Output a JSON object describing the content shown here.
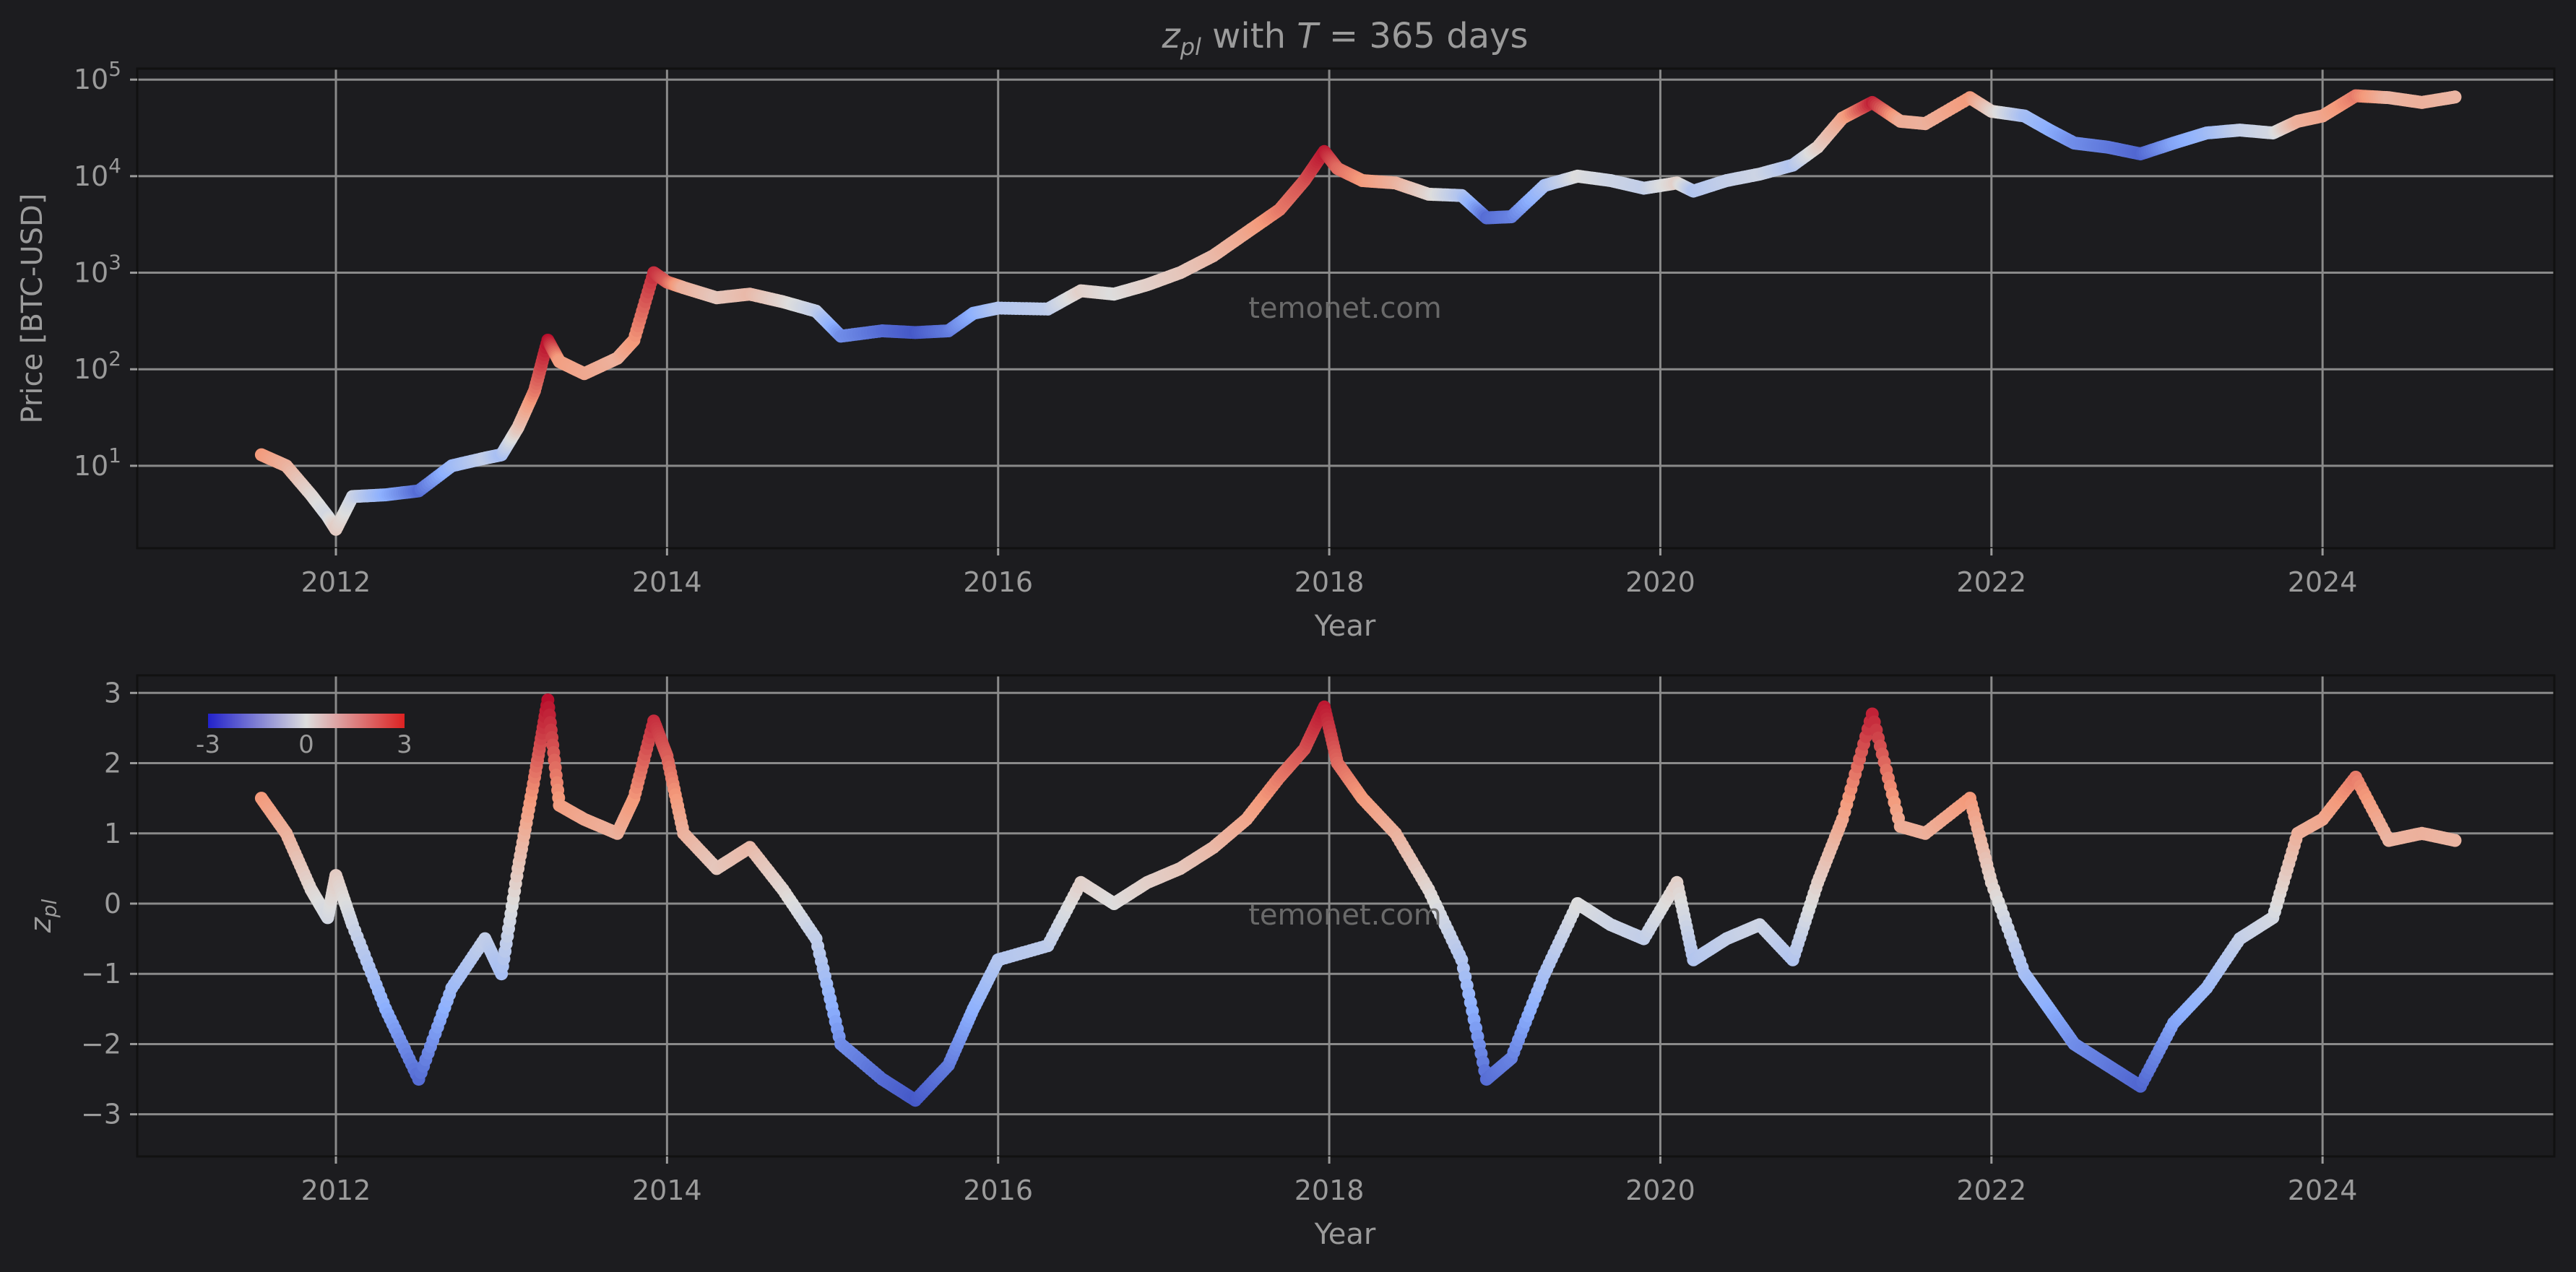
{
  "chart_data": [
    {
      "type": "scatter",
      "title": "z_pl with T = 365 days",
      "title_parts": {
        "z": "z",
        "sub": "pl",
        "mid": " with ",
        "T": "T",
        "rest": " = 365 days"
      },
      "xlabel": "Year",
      "ylabel": "Price [BTC-USD]",
      "yscale": "log",
      "xlim": [
        2010.8,
        2025.4
      ],
      "ylim": [
        1.4,
        130000
      ],
      "xticks": [
        2012,
        2014,
        2016,
        2018,
        2020,
        2022,
        2024
      ],
      "xtick_labels": [
        "2012",
        "2014",
        "2016",
        "2018",
        "2020",
        "2022",
        "2024"
      ],
      "yticks": [
        10,
        100,
        1000,
        10000,
        100000
      ],
      "ytick_labels": [
        {
          "b": "10",
          "e": "1"
        },
        {
          "b": "10",
          "e": "2"
        },
        {
          "b": "10",
          "e": "3"
        },
        {
          "b": "10",
          "e": "4"
        },
        {
          "b": "10",
          "e": "5"
        }
      ],
      "grid": true,
      "watermark": "temonet.com",
      "color_by": "z_pl",
      "series": [
        {
          "x": [
            2011.55,
            2011.7,
            2011.85,
            2011.95,
            2012.0,
            2012.1,
            2012.3,
            2012.5,
            2012.7,
            2012.9,
            2013.0,
            2013.1,
            2013.2,
            2013.28,
            2013.35,
            2013.5,
            2013.7,
            2013.8,
            2013.92,
            2014.0,
            2014.1,
            2014.3,
            2014.5,
            2014.7,
            2014.9,
            2015.05,
            2015.3,
            2015.5,
            2015.7,
            2015.85,
            2016.0,
            2016.3,
            2016.5,
            2016.7,
            2016.9,
            2017.1,
            2017.3,
            2017.5,
            2017.7,
            2017.85,
            2017.97,
            2018.05,
            2018.2,
            2018.4,
            2018.6,
            2018.8,
            2018.95,
            2019.1,
            2019.3,
            2019.5,
            2019.7,
            2019.9,
            2020.1,
            2020.2,
            2020.4,
            2020.6,
            2020.8,
            2020.95,
            2021.1,
            2021.28,
            2021.45,
            2021.6,
            2021.87,
            2022.0,
            2022.2,
            2022.35,
            2022.5,
            2022.7,
            2022.9,
            2023.1,
            2023.3,
            2023.5,
            2023.7,
            2023.85,
            2024.0,
            2024.2,
            2024.4,
            2024.6,
            2024.8
          ],
          "price": [
            13,
            10,
            5,
            3,
            2.2,
            4.8,
            5,
            5.5,
            10,
            12,
            13,
            25,
            60,
            200,
            120,
            90,
            130,
            200,
            1000,
            800,
            700,
            550,
            600,
            500,
            400,
            220,
            250,
            240,
            250,
            380,
            430,
            420,
            650,
            600,
            750,
            1000,
            1500,
            2600,
            4500,
            9000,
            18000,
            12000,
            9000,
            8500,
            6500,
            6300,
            3700,
            3800,
            8000,
            10000,
            9000,
            7500,
            8500,
            7000,
            9000,
            10500,
            13000,
            20000,
            40000,
            58000,
            37000,
            35000,
            65000,
            47000,
            42000,
            30000,
            22000,
            20000,
            17000,
            22000,
            28000,
            30000,
            28000,
            37000,
            42000,
            68000,
            65000,
            58000,
            66000
          ],
          "z": [
            1.5,
            1.0,
            0.2,
            -0.2,
            0.4,
            -0.3,
            -1.5,
            -2.5,
            -1.2,
            -0.5,
            -1.0,
            0.5,
            1.8,
            2.9,
            1.4,
            1.2,
            1.0,
            1.5,
            2.6,
            2.1,
            1.0,
            0.5,
            0.8,
            0.2,
            -0.5,
            -2.0,
            -2.5,
            -2.8,
            -2.3,
            -1.5,
            -0.8,
            -0.6,
            0.3,
            0.0,
            0.3,
            0.5,
            0.8,
            1.2,
            1.8,
            2.2,
            2.8,
            2.0,
            1.5,
            1.0,
            0.2,
            -0.8,
            -2.5,
            -2.2,
            -1.0,
            0.0,
            -0.3,
            -0.5,
            0.3,
            -0.8,
            -0.5,
            -0.3,
            -0.8,
            0.3,
            1.2,
            2.7,
            1.1,
            1.0,
            1.5,
            0.3,
            -1.0,
            -1.5,
            -2.0,
            -2.3,
            -2.6,
            -1.7,
            -1.2,
            -0.5,
            -0.2,
            1.0,
            1.2,
            1.8,
            0.9,
            1.0,
            0.9
          ]
        }
      ]
    },
    {
      "type": "scatter",
      "xlabel": "Year",
      "ylabel": "z_pl",
      "ylabel_parts": {
        "z": "z",
        "sub": "pl"
      },
      "xlim": [
        2010.8,
        2025.4
      ],
      "ylim": [
        -3.6,
        3.25
      ],
      "xticks": [
        2012,
        2014,
        2016,
        2018,
        2020,
        2022,
        2024
      ],
      "xtick_labels": [
        "2012",
        "2014",
        "2016",
        "2018",
        "2020",
        "2022",
        "2024"
      ],
      "yticks": [
        3,
        2,
        1,
        0,
        -1,
        -2,
        -3
      ],
      "ytick_labels": [
        "3",
        "2",
        "1",
        "0",
        "−1",
        "−2",
        "−3"
      ],
      "grid": true,
      "watermark": "temonet.com",
      "colorbar": {
        "min": -3,
        "max": 3,
        "labels": [
          "-3",
          "0",
          "3"
        ],
        "colors": [
          "#2222cc",
          "#dddddd",
          "#dd2222"
        ],
        "placement": "top-left"
      },
      "series": [
        {
          "x": [
            2011.55,
            2011.7,
            2011.85,
            2011.95,
            2012.0,
            2012.1,
            2012.3,
            2012.5,
            2012.7,
            2012.9,
            2013.0,
            2013.1,
            2013.2,
            2013.28,
            2013.35,
            2013.5,
            2013.7,
            2013.8,
            2013.92,
            2014.0,
            2014.1,
            2014.3,
            2014.5,
            2014.7,
            2014.9,
            2015.05,
            2015.3,
            2015.5,
            2015.7,
            2015.85,
            2016.0,
            2016.3,
            2016.5,
            2016.7,
            2016.9,
            2017.1,
            2017.3,
            2017.5,
            2017.7,
            2017.85,
            2017.97,
            2018.05,
            2018.2,
            2018.4,
            2018.6,
            2018.8,
            2018.95,
            2019.1,
            2019.3,
            2019.5,
            2019.7,
            2019.9,
            2020.1,
            2020.2,
            2020.4,
            2020.6,
            2020.8,
            2020.95,
            2021.1,
            2021.28,
            2021.45,
            2021.6,
            2021.87,
            2022.0,
            2022.2,
            2022.35,
            2022.5,
            2022.7,
            2022.9,
            2023.1,
            2023.3,
            2023.5,
            2023.7,
            2023.85,
            2024.0,
            2024.2,
            2024.4,
            2024.6,
            2024.8
          ],
          "z": [
            1.5,
            1.0,
            0.2,
            -0.2,
            0.4,
            -0.3,
            -1.5,
            -2.5,
            -1.2,
            -0.5,
            -1.0,
            0.5,
            1.8,
            2.9,
            1.4,
            1.2,
            1.0,
            1.5,
            2.6,
            2.1,
            1.0,
            0.5,
            0.8,
            0.2,
            -0.5,
            -2.0,
            -2.5,
            -2.8,
            -2.3,
            -1.5,
            -0.8,
            -0.6,
            0.3,
            0.0,
            0.3,
            0.5,
            0.8,
            1.2,
            1.8,
            2.2,
            2.8,
            2.0,
            1.5,
            1.0,
            0.2,
            -0.8,
            -2.5,
            -2.2,
            -1.0,
            0.0,
            -0.3,
            -0.5,
            0.3,
            -0.8,
            -0.5,
            -0.3,
            -0.8,
            0.3,
            1.2,
            2.7,
            1.1,
            1.0,
            1.5,
            0.3,
            -1.0,
            -1.5,
            -2.0,
            -2.3,
            -2.6,
            -1.7,
            -1.2,
            -0.5,
            -0.2,
            1.0,
            1.2,
            1.8,
            0.9,
            1.0,
            0.9
          ]
        }
      ]
    }
  ]
}
